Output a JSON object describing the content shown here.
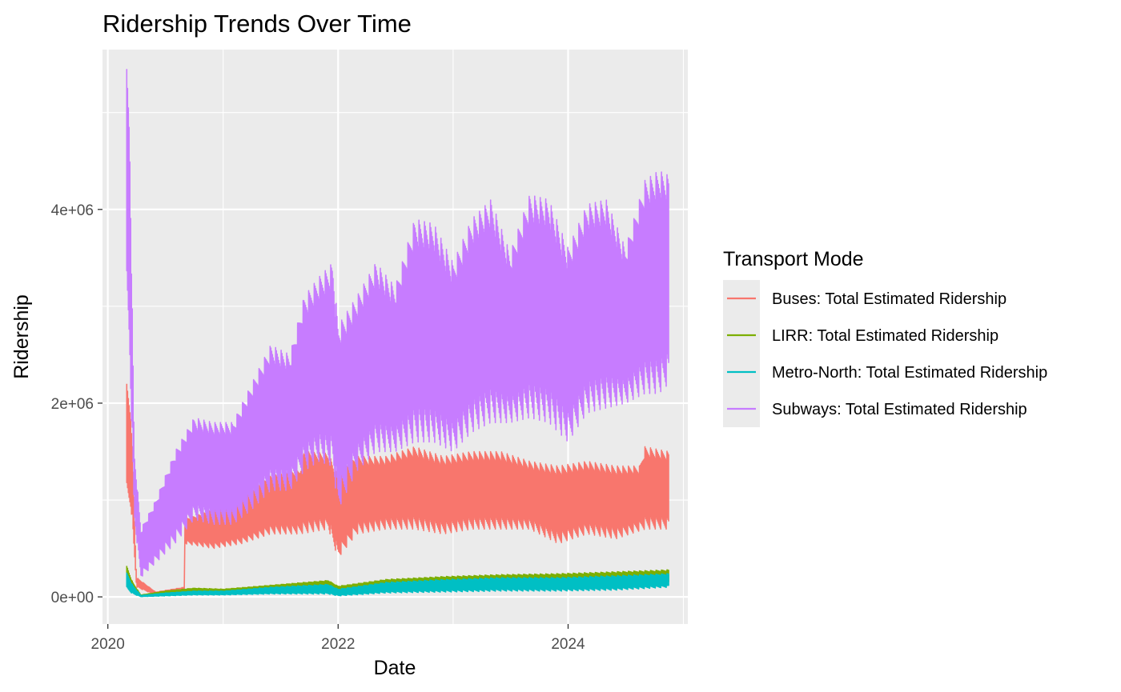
{
  "chart_data": {
    "type": "line",
    "title": "Ridership Trends Over Time",
    "xlabel": "Date",
    "ylabel": "Ridership",
    "x_ticks": [
      "2020",
      "2022",
      "2024"
    ],
    "y_ticks": [
      "0e+00",
      "2e+06",
      "4e+06"
    ],
    "xlim": [
      "2019-12-15",
      "2025-01-15"
    ],
    "ylim": [
      -280000,
      5650000
    ],
    "grid": true,
    "legend": {
      "title": "Transport Mode",
      "position": "right"
    },
    "series": [
      {
        "name": "Buses: Total Estimated Ridership",
        "color": "#F8766D",
        "upper": [
          [
            "2020-03-01",
            2200000
          ],
          [
            "2020-03-15",
            1900000
          ],
          [
            "2020-04-01",
            200000
          ],
          [
            "2020-06-01",
            50000
          ],
          [
            "2020-08-31",
            100000
          ],
          [
            "2020-09-01",
            800000
          ],
          [
            "2020-12-01",
            900000
          ],
          [
            "2021-03-01",
            1000000
          ],
          [
            "2021-06-01",
            1250000
          ],
          [
            "2021-09-01",
            1300000
          ],
          [
            "2021-09-15",
            1500000
          ],
          [
            "2021-12-01",
            1480000
          ],
          [
            "2022-01-01",
            1250000
          ],
          [
            "2022-03-01",
            1450000
          ],
          [
            "2022-06-01",
            1450000
          ],
          [
            "2022-09-01",
            1550000
          ],
          [
            "2022-12-01",
            1450000
          ],
          [
            "2023-03-01",
            1500000
          ],
          [
            "2023-06-01",
            1500000
          ],
          [
            "2023-09-01",
            1400000
          ],
          [
            "2023-12-01",
            1350000
          ],
          [
            "2024-03-01",
            1400000
          ],
          [
            "2024-06-01",
            1350000
          ],
          [
            "2024-08-15",
            1350000
          ],
          [
            "2024-09-01",
            1550000
          ],
          [
            "2024-11-15",
            1500000
          ]
        ],
        "lower": [
          [
            "2020-03-01",
            1000000
          ],
          [
            "2020-03-15",
            900000
          ],
          [
            "2020-04-01",
            100000
          ],
          [
            "2020-06-01",
            20000
          ],
          [
            "2020-08-31",
            50000
          ],
          [
            "2020-09-01",
            550000
          ],
          [
            "2020-12-01",
            500000
          ],
          [
            "2021-03-01",
            550000
          ],
          [
            "2021-06-01",
            650000
          ],
          [
            "2021-09-01",
            650000
          ],
          [
            "2021-12-01",
            700000
          ],
          [
            "2022-01-01",
            400000
          ],
          [
            "2022-03-01",
            650000
          ],
          [
            "2022-06-01",
            700000
          ],
          [
            "2022-09-01",
            700000
          ],
          [
            "2022-12-01",
            650000
          ],
          [
            "2023-03-01",
            700000
          ],
          [
            "2023-06-01",
            700000
          ],
          [
            "2023-09-01",
            700000
          ],
          [
            "2023-12-01",
            550000
          ],
          [
            "2024-03-01",
            650000
          ],
          [
            "2024-06-01",
            600000
          ],
          [
            "2024-09-01",
            700000
          ],
          [
            "2024-11-15",
            700000
          ]
        ]
      },
      {
        "name": "LIRR: Total Estimated Ridership",
        "color": "#7CAE00",
        "upper": [
          [
            "2020-03-01",
            320000
          ],
          [
            "2020-03-20",
            150000
          ],
          [
            "2020-04-15",
            20000
          ],
          [
            "2020-07-01",
            60000
          ],
          [
            "2020-10-01",
            90000
          ],
          [
            "2021-01-01",
            80000
          ],
          [
            "2021-06-01",
            120000
          ],
          [
            "2021-12-01",
            170000
          ],
          [
            "2022-01-01",
            110000
          ],
          [
            "2022-06-01",
            180000
          ],
          [
            "2022-12-01",
            210000
          ],
          [
            "2023-06-01",
            230000
          ],
          [
            "2023-12-01",
            240000
          ],
          [
            "2024-06-01",
            260000
          ],
          [
            "2024-11-15",
            280000
          ]
        ],
        "lower": [
          [
            "2020-03-01",
            150000
          ],
          [
            "2020-03-20",
            60000
          ],
          [
            "2020-04-15",
            5000
          ],
          [
            "2020-07-01",
            30000
          ],
          [
            "2020-10-01",
            50000
          ],
          [
            "2021-01-01",
            40000
          ],
          [
            "2021-06-01",
            70000
          ],
          [
            "2021-12-01",
            90000
          ],
          [
            "2022-01-01",
            50000
          ],
          [
            "2022-06-01",
            90000
          ],
          [
            "2022-12-01",
            110000
          ],
          [
            "2023-06-01",
            120000
          ],
          [
            "2023-12-01",
            120000
          ],
          [
            "2024-06-01",
            130000
          ],
          [
            "2024-11-15",
            140000
          ]
        ]
      },
      {
        "name": "Metro-North: Total Estimated Ridership",
        "color": "#00BFC4",
        "upper": [
          [
            "2020-03-01",
            250000
          ],
          [
            "2020-03-20",
            120000
          ],
          [
            "2020-04-15",
            15000
          ],
          [
            "2020-07-01",
            40000
          ],
          [
            "2020-10-01",
            60000
          ],
          [
            "2021-01-01",
            60000
          ],
          [
            "2021-06-01",
            100000
          ],
          [
            "2021-12-01",
            130000
          ],
          [
            "2022-01-01",
            80000
          ],
          [
            "2022-06-01",
            150000
          ],
          [
            "2022-12-01",
            180000
          ],
          [
            "2023-06-01",
            200000
          ],
          [
            "2023-12-01",
            200000
          ],
          [
            "2024-06-01",
            220000
          ],
          [
            "2024-11-15",
            240000
          ]
        ],
        "lower": [
          [
            "2020-03-01",
            80000
          ],
          [
            "2020-03-20",
            30000
          ],
          [
            "2020-04-15",
            3000
          ],
          [
            "2020-07-01",
            10000
          ],
          [
            "2020-10-01",
            20000
          ],
          [
            "2021-01-01",
            20000
          ],
          [
            "2021-06-01",
            30000
          ],
          [
            "2021-12-01",
            30000
          ],
          [
            "2022-01-01",
            10000
          ],
          [
            "2022-06-01",
            40000
          ],
          [
            "2022-12-01",
            50000
          ],
          [
            "2023-06-01",
            60000
          ],
          [
            "2023-12-01",
            60000
          ],
          [
            "2024-06-01",
            70000
          ],
          [
            "2024-11-15",
            100000
          ]
        ]
      },
      {
        "name": "Subways: Total Estimated Ridership",
        "color": "#C77CFF",
        "upper": [
          [
            "2020-03-01",
            5450000
          ],
          [
            "2020-03-10",
            4900000
          ],
          [
            "2020-03-25",
            1500000
          ],
          [
            "2020-04-15",
            700000
          ],
          [
            "2020-06-01",
            1000000
          ],
          [
            "2020-08-01",
            1500000
          ],
          [
            "2020-10-01",
            1850000
          ],
          [
            "2020-12-01",
            1800000
          ],
          [
            "2021-02-01",
            1800000
          ],
          [
            "2021-04-01",
            2200000
          ],
          [
            "2021-06-01",
            2600000
          ],
          [
            "2021-08-01",
            2500000
          ],
          [
            "2021-09-15",
            3100000
          ],
          [
            "2021-11-01",
            3300000
          ],
          [
            "2021-12-15",
            3450000
          ],
          [
            "2022-01-01",
            2800000
          ],
          [
            "2022-03-01",
            3100000
          ],
          [
            "2022-05-01",
            3450000
          ],
          [
            "2022-07-01",
            3200000
          ],
          [
            "2022-09-01",
            3900000
          ],
          [
            "2022-11-01",
            3850000
          ],
          [
            "2023-01-01",
            3450000
          ],
          [
            "2023-03-01",
            3900000
          ],
          [
            "2023-05-01",
            4100000
          ],
          [
            "2023-07-01",
            3550000
          ],
          [
            "2023-09-01",
            4150000
          ],
          [
            "2023-11-01",
            4100000
          ],
          [
            "2024-01-01",
            3600000
          ],
          [
            "2024-03-01",
            4050000
          ],
          [
            "2024-05-01",
            4100000
          ],
          [
            "2024-07-01",
            3600000
          ],
          [
            "2024-09-01",
            4300000
          ],
          [
            "2024-10-15",
            4400000
          ],
          [
            "2024-11-15",
            4350000
          ]
        ],
        "lower": [
          [
            "2020-03-01",
            3000000
          ],
          [
            "2020-03-10",
            2500000
          ],
          [
            "2020-03-25",
            800000
          ],
          [
            "2020-04-15",
            200000
          ],
          [
            "2020-06-01",
            350000
          ],
          [
            "2020-08-01",
            550000
          ],
          [
            "2020-10-01",
            800000
          ],
          [
            "2020-12-01",
            750000
          ],
          [
            "2021-02-01",
            750000
          ],
          [
            "2021-04-01",
            900000
          ],
          [
            "2021-06-01",
            1100000
          ],
          [
            "2021-08-01",
            1100000
          ],
          [
            "2021-09-15",
            1300000
          ],
          [
            "2021-11-01",
            1400000
          ],
          [
            "2021-12-15",
            1350000
          ],
          [
            "2022-01-01",
            900000
          ],
          [
            "2022-03-01",
            1300000
          ],
          [
            "2022-05-01",
            1500000
          ],
          [
            "2022-07-01",
            1500000
          ],
          [
            "2022-09-01",
            1600000
          ],
          [
            "2022-11-01",
            1600000
          ],
          [
            "2023-01-01",
            1500000
          ],
          [
            "2023-03-01",
            1700000
          ],
          [
            "2023-05-01",
            1800000
          ],
          [
            "2023-07-01",
            1800000
          ],
          [
            "2023-09-01",
            1850000
          ],
          [
            "2023-11-01",
            1800000
          ],
          [
            "2024-01-01",
            1600000
          ],
          [
            "2024-03-01",
            1900000
          ],
          [
            "2024-05-01",
            1950000
          ],
          [
            "2024-07-01",
            2000000
          ],
          [
            "2024-09-01",
            2100000
          ],
          [
            "2024-10-15",
            2100000
          ],
          [
            "2024-11-15",
            2200000
          ]
        ]
      }
    ]
  }
}
